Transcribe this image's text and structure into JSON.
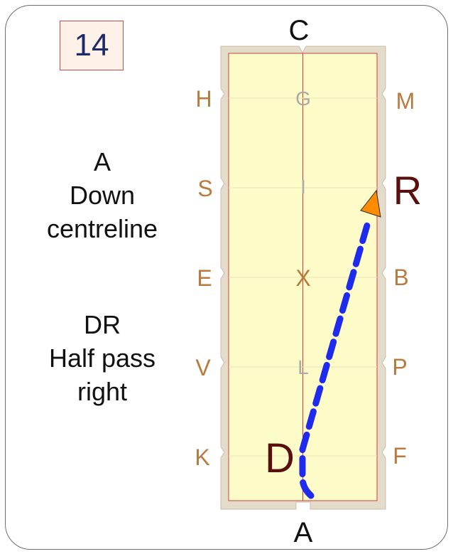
{
  "test_number": "14",
  "movement_1": {
    "letter": "A",
    "line1": "Down",
    "line2": "centreline"
  },
  "movement_2": {
    "letter": "DR",
    "line1": "Half pass",
    "line2": "right"
  },
  "arena": {
    "end_top": "C",
    "end_bottom": "A",
    "left_markers": [
      "H",
      "S",
      "E",
      "V",
      "K"
    ],
    "right_markers": [
      "M",
      "R",
      "B",
      "P",
      "F"
    ],
    "centre_markers": [
      "G",
      "I",
      "X",
      "L",
      "D"
    ],
    "highlight_markers": [
      "R",
      "D"
    ]
  },
  "colors": {
    "arena_fill": "#fdfbc8",
    "arena_border": "#e4dccb",
    "track_line": "#d04040",
    "marker_text": "#b87a3e",
    "centre_marker_text": "#aaaaaa",
    "highlight_text": "#5a0f0f",
    "path": "#1f2aef",
    "arrow": "#ff8c00"
  }
}
